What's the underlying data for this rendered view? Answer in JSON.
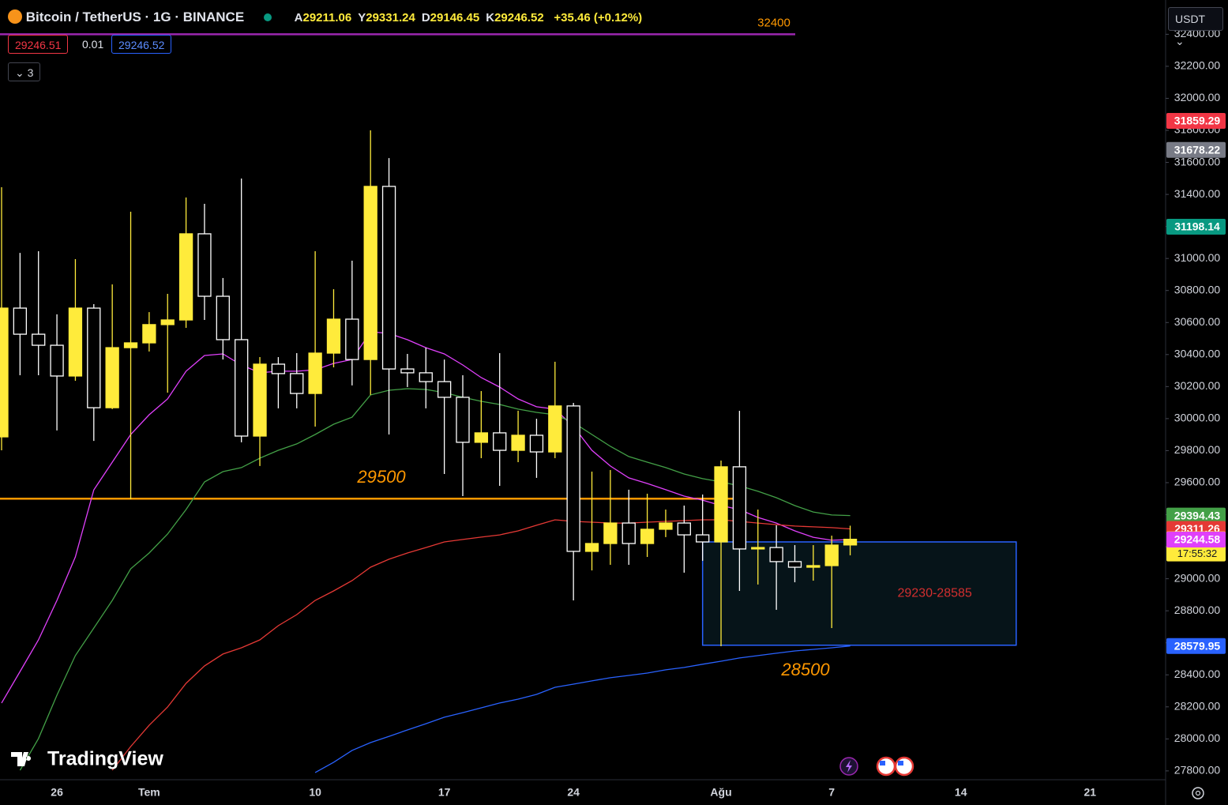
{
  "header": {
    "symbol": "Bitcoin / TetherUS · 1G · BINANCE",
    "ohlc": [
      {
        "label": "A",
        "value": 29211.06
      },
      {
        "label": "Y",
        "value": 29331.24
      },
      {
        "label": "D",
        "value": 29146.45
      },
      {
        "label": "K",
        "value": 29246.52
      }
    ],
    "change": "+35.46 (+0.12%)",
    "sell": "29246.51",
    "spread": "0.01",
    "buy": "29246.52",
    "indicators": "3",
    "currency": "USDT",
    "logo": "TradingView"
  },
  "chart_data": {
    "type": "candlestick",
    "categories": [
      null,
      null,
      null,
      "26",
      null,
      null,
      null,
      null,
      "Tem",
      null,
      null,
      null,
      null,
      null,
      null,
      null,
      null,
      "10",
      null,
      null,
      null,
      null,
      null,
      null,
      "17",
      null,
      null,
      null,
      null,
      null,
      null,
      "24",
      null,
      null,
      null,
      null,
      null,
      null,
      null,
      "Ağu",
      null,
      null,
      null,
      null,
      null,
      "7",
      null,
      null,
      null,
      null,
      null,
      null,
      "14",
      null,
      null,
      null,
      null,
      null,
      null,
      "21",
      null,
      null,
      null
    ],
    "open": [
      29886,
      30690,
      30527,
      30458,
      30266,
      30690,
      30068,
      30443,
      30473,
      30587,
      30616,
      31154,
      30764,
      30493,
      29891,
      30340,
      30281,
      30157,
      30409,
      30621,
      30369,
      31450,
      30310,
      30286,
      30231,
      30133,
      29852,
      29911,
      29802,
      29896,
      29792,
      30079,
      29171,
      29220,
      29348,
      29220,
      29309,
      29348,
      29274,
      29230,
      29699,
      29186,
      29195,
      29107,
      29072,
      29082,
      29211.06,
      null,
      null,
      null,
      null,
      null,
      null,
      null,
      null,
      null,
      null,
      null,
      null,
      null,
      null,
      null,
      null
    ],
    "high": [
      31445,
      31035,
      31045,
      30651,
      30996,
      30715,
      30838,
      31292,
      30665,
      30779,
      31381,
      31341,
      30878,
      31499,
      30384,
      30384,
      30409,
      31045,
      30808,
      30986,
      31800,
      31627,
      30404,
      30443,
      30369,
      30271,
      30172,
      30409,
      30049,
      29999,
      30355,
      30098,
      29669,
      29679,
      29556,
      29531,
      29432,
      29457,
      29526,
      29738,
      30049,
      29432,
      29334,
      29210,
      29210,
      29269,
      29331.24,
      null,
      null,
      null,
      null,
      null,
      null,
      null,
      null,
      null,
      null,
      null,
      null,
      null,
      null,
      null,
      null
    ],
    "low": [
      29802,
      30271,
      30271,
      29926,
      30236,
      29861,
      30059,
      29496,
      30419,
      30162,
      30567,
      30616,
      30369,
      29852,
      29704,
      30064,
      30064,
      29950,
      30320,
      30207,
      30148,
      29901,
      30197,
      30064,
      29654,
      29516,
      29753,
      29580,
      29728,
      29630,
      29753,
      28865,
      29052,
      29087,
      29087,
      29136,
      29260,
      29038,
      29112,
      28579,
      28924,
      28964,
      28806,
      28978,
      28988,
      28692,
      29146.45,
      null,
      null,
      null,
      null,
      null,
      null,
      null,
      null,
      null,
      null,
      null,
      null,
      null,
      null,
      null,
      null
    ],
    "close": [
      30690,
      30527,
      30458,
      30266,
      30690,
      30068,
      30443,
      30473,
      30587,
      30616,
      31154,
      30764,
      30493,
      29891,
      30340,
      30281,
      30157,
      30409,
      30621,
      30369,
      31450,
      30310,
      30286,
      30231,
      30133,
      29852,
      29911,
      29802,
      29896,
      29792,
      30079,
      29171,
      29220,
      29348,
      29220,
      29309,
      29348,
      29274,
      29230,
      29699,
      29186,
      29195,
      29107,
      29072,
      29082,
      29210,
      29246.52,
      null,
      null,
      null,
      null,
      null,
      null,
      null,
      null,
      null,
      null,
      null,
      null,
      null,
      null,
      null,
      null
    ],
    "up_color": "#ffeb3b",
    "down_color": "#ffffff",
    "series": [
      {
        "color": "#e040fb",
        "values": [
          28224,
          28421,
          28618,
          28865,
          29136,
          29555,
          29728,
          29901,
          30024,
          30123,
          30296,
          30394,
          30404,
          30335,
          30286,
          30296,
          30296,
          30305,
          30345,
          30369,
          30542,
          30532,
          30493,
          30443,
          30404,
          30335,
          30256,
          30197,
          30123,
          30074,
          30059,
          29950,
          29802,
          29704,
          29630,
          29595,
          29556,
          29516,
          29491,
          29457,
          29432,
          29383,
          29348,
          29299,
          29259,
          29240,
          29244.58,
          null,
          null,
          null,
          null,
          null,
          null,
          null,
          null,
          null,
          null,
          null,
          null,
          null,
          null,
          null,
          null
        ]
      },
      {
        "color": "#43a047",
        "values": [
          null,
          27804,
          28002,
          28273,
          28520,
          28692,
          28865,
          29062,
          29161,
          29279,
          29432,
          29605,
          29669,
          29694,
          29753,
          29802,
          29842,
          29901,
          29965,
          30009,
          30148,
          30177,
          30187,
          30182,
          30162,
          30133,
          30108,
          30088,
          30059,
          30039,
          30024,
          29975,
          29901,
          29827,
          29763,
          29728,
          29694,
          29654,
          29625,
          29605,
          29580,
          29546,
          29506,
          29457,
          29417,
          29398,
          29394.43,
          null,
          null,
          null,
          null,
          null,
          null,
          null,
          null,
          null,
          null,
          null,
          null,
          null,
          null,
          null,
          null
        ]
      },
      {
        "color": "#e53935",
        "values": [
          null,
          null,
          null,
          null,
          null,
          null,
          27804,
          27952,
          28085,
          28199,
          28347,
          28456,
          28530,
          28569,
          28618,
          28707,
          28776,
          28865,
          28924,
          28988,
          29072,
          29122,
          29161,
          29195,
          29230,
          29245,
          29260,
          29274,
          29299,
          29334,
          29368,
          29358,
          29353,
          29348,
          29348,
          29353,
          29358,
          29363,
          29368,
          29368,
          29358,
          29348,
          29338,
          29329,
          29324,
          29319,
          29311.26,
          null,
          null,
          null,
          null,
          null,
          null,
          null,
          null,
          null,
          null,
          null,
          null,
          null,
          null,
          null,
          null
        ]
      },
      {
        "color": "#2962ff",
        "values": [
          null,
          null,
          null,
          null,
          null,
          null,
          null,
          null,
          null,
          null,
          null,
          null,
          null,
          null,
          null,
          null,
          null,
          27790,
          27854,
          27928,
          27977,
          28016,
          28056,
          28095,
          28135,
          28164,
          28194,
          28224,
          28248,
          28278,
          28322,
          28342,
          28362,
          28382,
          28396,
          28411,
          28431,
          28446,
          28466,
          28485,
          28505,
          28520,
          28535,
          28549,
          28559,
          28569,
          28579.95,
          null,
          null,
          null,
          null,
          null,
          null,
          null,
          null,
          null,
          null,
          null,
          null,
          null,
          null,
          null,
          null
        ]
      }
    ],
    "ylim": [
      27745,
      32614
    ],
    "yticks": [
      {
        "value": 27800,
        "label": "27800.00"
      },
      {
        "value": 28000,
        "label": "28000.00"
      },
      {
        "value": 28200,
        "label": "28200.00"
      },
      {
        "value": 28400,
        "label": "28400.00"
      },
      {
        "value": 28600,
        "label": "28600.00"
      },
      {
        "value": 28800,
        "label": "28800.00"
      },
      {
        "value": 29000,
        "label": "29000.00"
      },
      {
        "value": 29200,
        "label": "29200.00"
      },
      {
        "value": 29400,
        "label": "29400.00"
      },
      {
        "value": 29600,
        "label": "29600.00"
      },
      {
        "value": 29800,
        "label": "29800.00"
      },
      {
        "value": 30000,
        "label": "30000.00"
      },
      {
        "value": 30200,
        "label": "30200.00"
      },
      {
        "value": 30400,
        "label": "30400.00"
      },
      {
        "value": 30600,
        "label": "30600.00"
      },
      {
        "value": 30800,
        "label": "30800.00"
      },
      {
        "value": 31000,
        "label": "31000.00"
      },
      {
        "value": 31200,
        "label": "31200.00"
      },
      {
        "value": 31400,
        "label": "31400.00"
      },
      {
        "value": 31600,
        "label": "31600.00"
      },
      {
        "value": 31800,
        "label": "31800.00"
      },
      {
        "value": 32000,
        "label": "32000.00"
      },
      {
        "value": 32200,
        "label": "32200.00"
      },
      {
        "value": 32400,
        "label": "32400.00"
      }
    ],
    "price_labels": [
      {
        "value": 31859.29,
        "color": "#f23645"
      },
      {
        "value": 31678.22,
        "color": "#787b86"
      },
      {
        "value": 31198.14,
        "color": "#089981"
      }
    ],
    "countdown": "17:55:32",
    "hlines": [
      {
        "value": 29500,
        "color": "#ff9800"
      },
      {
        "value": 32400,
        "color": "#9c27b0"
      }
    ],
    "zone": {
      "label": "29230-28585",
      "top": 29230,
      "bottom": 28585,
      "color": "#2962ff"
    },
    "annotation": "28500"
  }
}
